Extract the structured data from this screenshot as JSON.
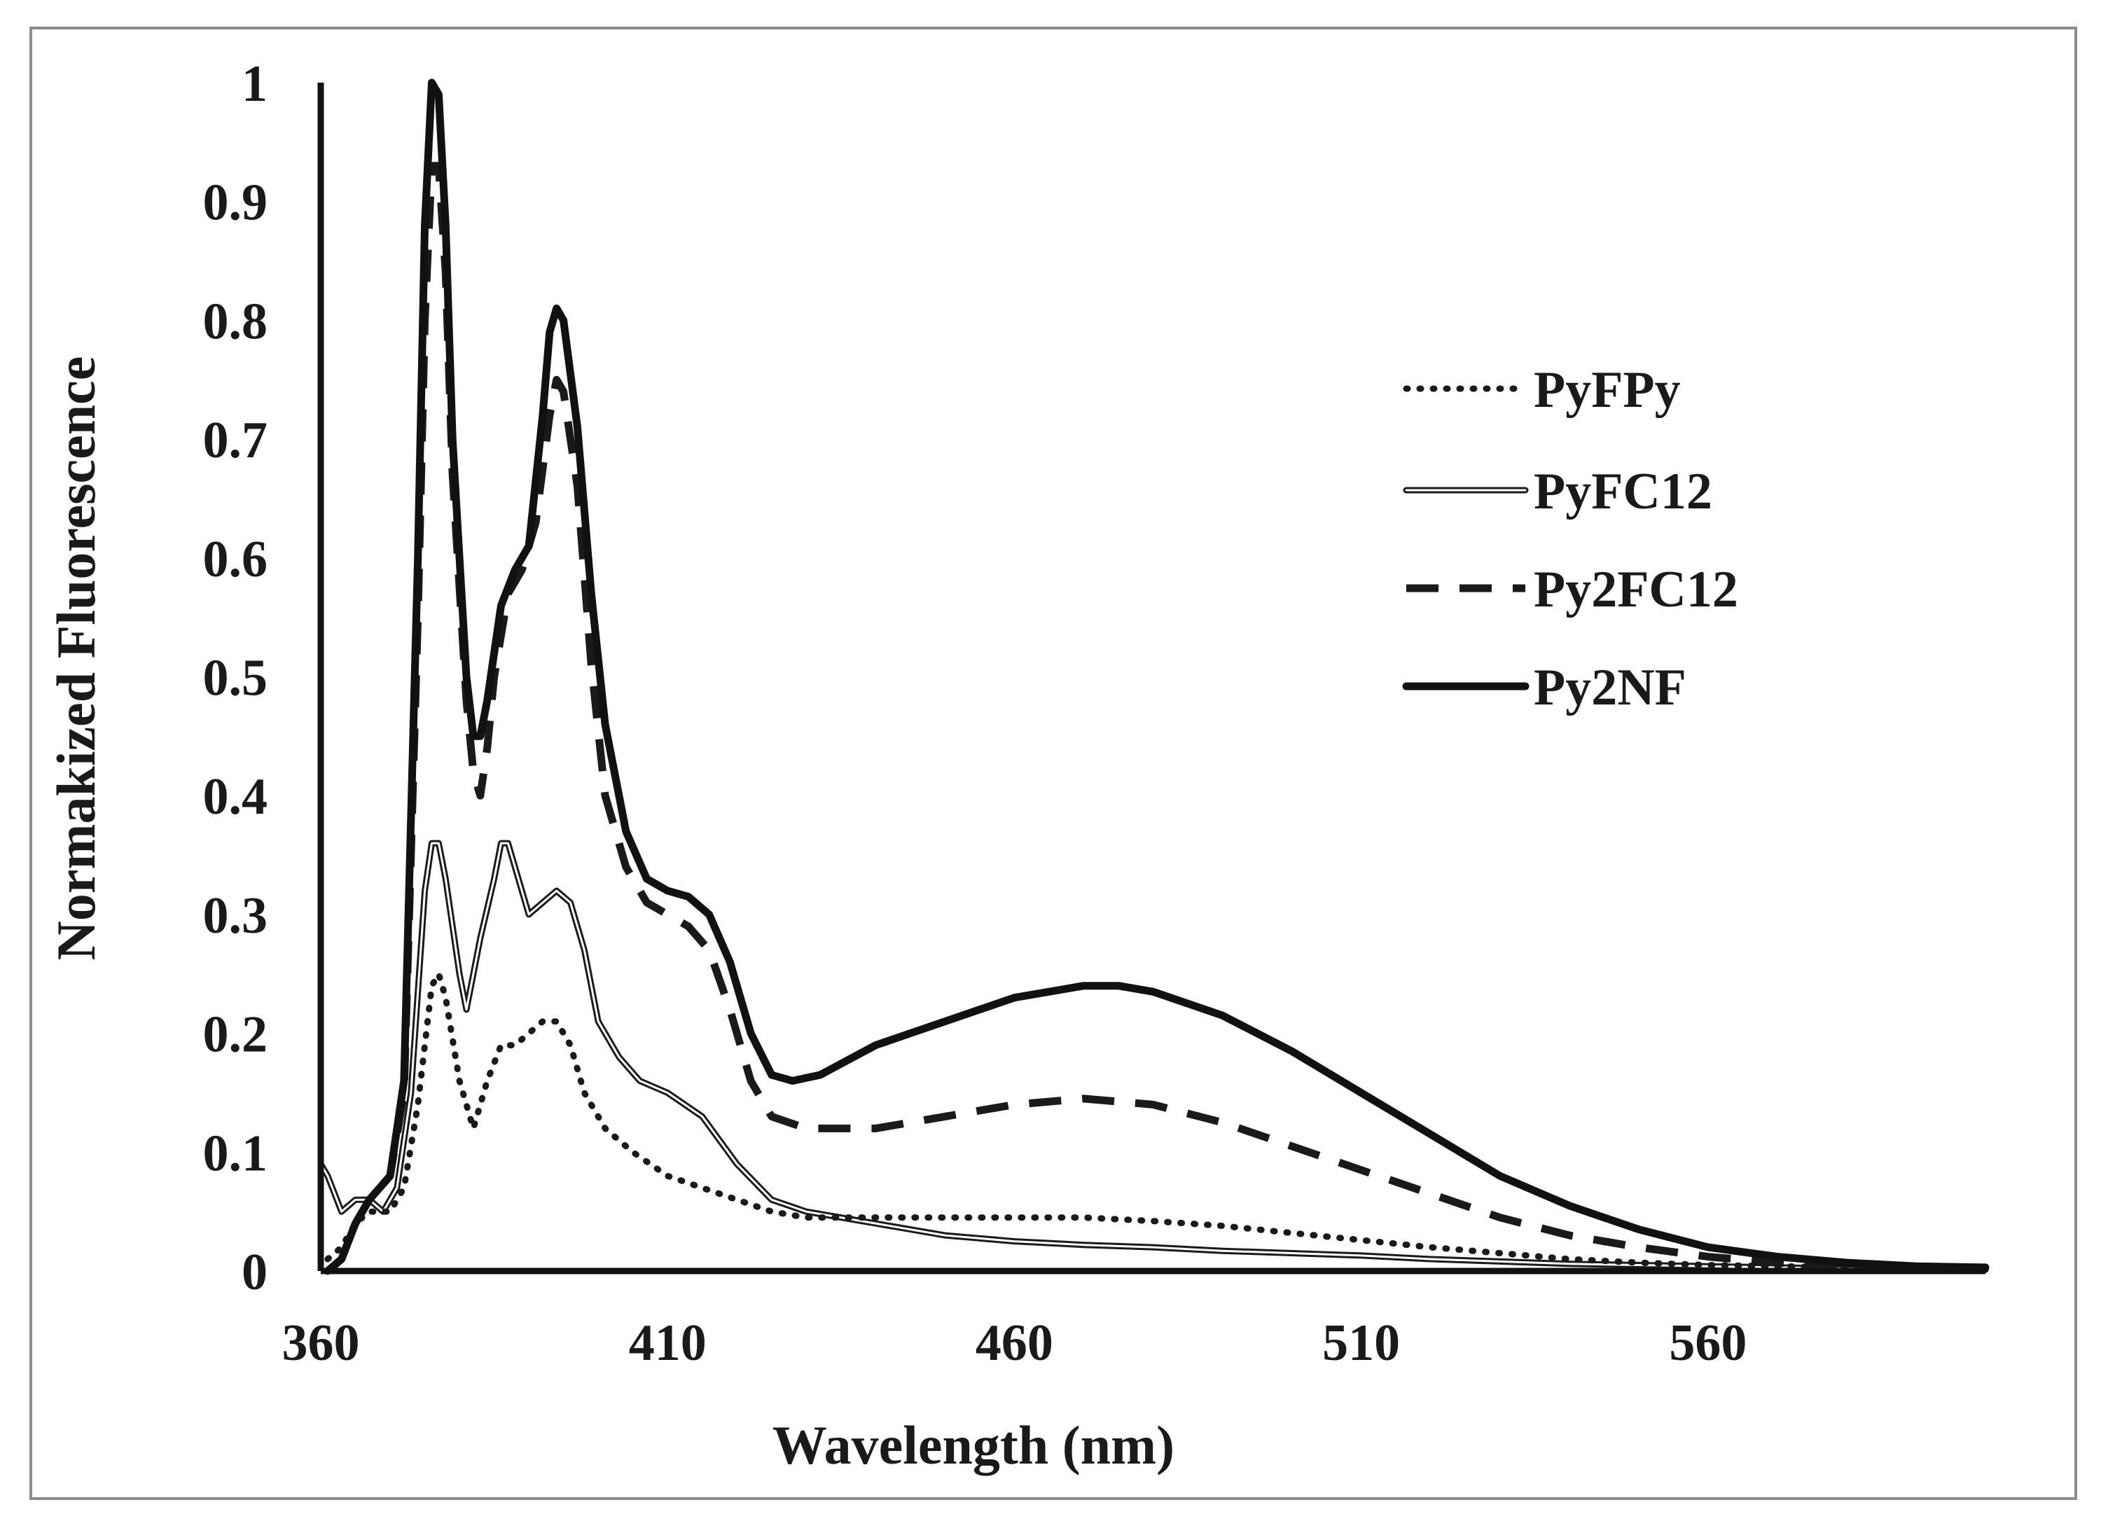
{
  "chart_data": {
    "type": "line",
    "title": "",
    "xlabel": "Wavelength (nm)",
    "ylabel": "Normakized Fluorescence",
    "xlim": [
      360,
      600
    ],
    "ylim": [
      0,
      1
    ],
    "x_ticks": [
      360,
      410,
      460,
      510,
      560
    ],
    "x_tick_labels": [
      "360",
      "410",
      "460",
      "510",
      "560"
    ],
    "y_ticks": [
      0,
      0.1,
      0.2,
      0.3,
      0.4,
      0.5,
      0.6,
      0.7,
      0.8,
      0.9,
      1
    ],
    "y_tick_labels": [
      "0",
      "0.1",
      "0.2",
      "0.3",
      "0.4",
      "0.5",
      "0.6",
      "0.7",
      "0.8",
      "0.9",
      "1"
    ],
    "grid": false,
    "legend_position": "right",
    "series": [
      {
        "name": "PyFPy",
        "style": "dotted",
        "color": "#1a1a1a",
        "points": [
          [
            361,
            0.01
          ],
          [
            363,
            0.02
          ],
          [
            365,
            0.04
          ],
          [
            367,
            0.05
          ],
          [
            370,
            0.05
          ],
          [
            372,
            0.07
          ],
          [
            374,
            0.14
          ],
          [
            376,
            0.24
          ],
          [
            377,
            0.25
          ],
          [
            378,
            0.23
          ],
          [
            380,
            0.16
          ],
          [
            382,
            0.12
          ],
          [
            384,
            0.16
          ],
          [
            386,
            0.19
          ],
          [
            388,
            0.19
          ],
          [
            390,
            0.2
          ],
          [
            392,
            0.21
          ],
          [
            394,
            0.21
          ],
          [
            396,
            0.19
          ],
          [
            398,
            0.15
          ],
          [
            401,
            0.12
          ],
          [
            405,
            0.1
          ],
          [
            410,
            0.08
          ],
          [
            415,
            0.07
          ],
          [
            420,
            0.06
          ],
          [
            425,
            0.05
          ],
          [
            430,
            0.045
          ],
          [
            440,
            0.045
          ],
          [
            450,
            0.045
          ],
          [
            460,
            0.045
          ],
          [
            470,
            0.045
          ],
          [
            480,
            0.042
          ],
          [
            490,
            0.038
          ],
          [
            500,
            0.032
          ],
          [
            510,
            0.026
          ],
          [
            520,
            0.02
          ],
          [
            530,
            0.015
          ],
          [
            540,
            0.01
          ],
          [
            550,
            0.007
          ],
          [
            560,
            0.005
          ],
          [
            580,
            0.003
          ],
          [
            600,
            0.002
          ]
        ]
      },
      {
        "name": "PyFC12",
        "style": "double",
        "color": "#1a1a1a",
        "points": [
          [
            360,
            0.09
          ],
          [
            361,
            0.08
          ],
          [
            363,
            0.05
          ],
          [
            365,
            0.06
          ],
          [
            367,
            0.06
          ],
          [
            369,
            0.05
          ],
          [
            371,
            0.07
          ],
          [
            373,
            0.15
          ],
          [
            375,
            0.32
          ],
          [
            376,
            0.36
          ],
          [
            377,
            0.36
          ],
          [
            378,
            0.33
          ],
          [
            380,
            0.25
          ],
          [
            381,
            0.22
          ],
          [
            383,
            0.28
          ],
          [
            385,
            0.33
          ],
          [
            386,
            0.36
          ],
          [
            387,
            0.36
          ],
          [
            389,
            0.32
          ],
          [
            390,
            0.3
          ],
          [
            392,
            0.31
          ],
          [
            394,
            0.32
          ],
          [
            396,
            0.31
          ],
          [
            398,
            0.27
          ],
          [
            400,
            0.21
          ],
          [
            403,
            0.18
          ],
          [
            406,
            0.16
          ],
          [
            410,
            0.15
          ],
          [
            415,
            0.13
          ],
          [
            420,
            0.09
          ],
          [
            425,
            0.06
          ],
          [
            430,
            0.05
          ],
          [
            440,
            0.04
          ],
          [
            450,
            0.03
          ],
          [
            460,
            0.025
          ],
          [
            470,
            0.022
          ],
          [
            480,
            0.02
          ],
          [
            490,
            0.017
          ],
          [
            500,
            0.015
          ],
          [
            510,
            0.013
          ],
          [
            520,
            0.01
          ],
          [
            530,
            0.008
          ],
          [
            540,
            0.006
          ],
          [
            550,
            0.005
          ],
          [
            560,
            0.004
          ],
          [
            580,
            0.002
          ],
          [
            600,
            0.001
          ]
        ]
      },
      {
        "name": "Py2FC12",
        "style": "dashed",
        "color": "#1a1a1a",
        "points": [
          [
            361,
            0.0
          ],
          [
            363,
            0.01
          ],
          [
            365,
            0.04
          ],
          [
            367,
            0.06
          ],
          [
            370,
            0.08
          ],
          [
            372,
            0.15
          ],
          [
            374,
            0.55
          ],
          [
            375,
            0.8
          ],
          [
            376,
            0.93
          ],
          [
            377,
            0.93
          ],
          [
            378,
            0.84
          ],
          [
            379,
            0.67
          ],
          [
            381,
            0.48
          ],
          [
            382,
            0.42
          ],
          [
            383,
            0.4
          ],
          [
            384,
            0.44
          ],
          [
            385,
            0.5
          ],
          [
            387,
            0.57
          ],
          [
            389,
            0.59
          ],
          [
            391,
            0.63
          ],
          [
            393,
            0.72
          ],
          [
            394,
            0.75
          ],
          [
            395,
            0.74
          ],
          [
            397,
            0.66
          ],
          [
            399,
            0.51
          ],
          [
            401,
            0.4
          ],
          [
            404,
            0.34
          ],
          [
            407,
            0.31
          ],
          [
            410,
            0.3
          ],
          [
            413,
            0.29
          ],
          [
            416,
            0.27
          ],
          [
            419,
            0.22
          ],
          [
            422,
            0.16
          ],
          [
            425,
            0.13
          ],
          [
            430,
            0.12
          ],
          [
            440,
            0.12
          ],
          [
            450,
            0.13
          ],
          [
            460,
            0.14
          ],
          [
            470,
            0.145
          ],
          [
            480,
            0.14
          ],
          [
            490,
            0.125
          ],
          [
            500,
            0.105
          ],
          [
            510,
            0.085
          ],
          [
            520,
            0.065
          ],
          [
            530,
            0.045
          ],
          [
            540,
            0.03
          ],
          [
            550,
            0.02
          ],
          [
            560,
            0.012
          ],
          [
            570,
            0.007
          ],
          [
            580,
            0.004
          ],
          [
            600,
            0.002
          ]
        ]
      },
      {
        "name": "Py2NF",
        "style": "solid",
        "color": "#1a1a1a",
        "points": [
          [
            361,
            0.0
          ],
          [
            363,
            0.01
          ],
          [
            365,
            0.04
          ],
          [
            367,
            0.06
          ],
          [
            370,
            0.08
          ],
          [
            372,
            0.16
          ],
          [
            374,
            0.6
          ],
          [
            375,
            0.88
          ],
          [
            376,
            1.0
          ],
          [
            377,
            0.99
          ],
          [
            378,
            0.88
          ],
          [
            379,
            0.7
          ],
          [
            381,
            0.5
          ],
          [
            382,
            0.45
          ],
          [
            383,
            0.45
          ],
          [
            384,
            0.48
          ],
          [
            386,
            0.56
          ],
          [
            388,
            0.59
          ],
          [
            390,
            0.61
          ],
          [
            392,
            0.72
          ],
          [
            393,
            0.79
          ],
          [
            394,
            0.81
          ],
          [
            395,
            0.8
          ],
          [
            397,
            0.71
          ],
          [
            399,
            0.57
          ],
          [
            401,
            0.46
          ],
          [
            404,
            0.37
          ],
          [
            407,
            0.33
          ],
          [
            410,
            0.32
          ],
          [
            413,
            0.315
          ],
          [
            416,
            0.3
          ],
          [
            419,
            0.26
          ],
          [
            422,
            0.2
          ],
          [
            425,
            0.165
          ],
          [
            428,
            0.16
          ],
          [
            432,
            0.165
          ],
          [
            440,
            0.19
          ],
          [
            450,
            0.21
          ],
          [
            460,
            0.23
          ],
          [
            470,
            0.24
          ],
          [
            475,
            0.24
          ],
          [
            480,
            0.235
          ],
          [
            490,
            0.215
          ],
          [
            500,
            0.185
          ],
          [
            510,
            0.15
          ],
          [
            520,
            0.115
          ],
          [
            530,
            0.08
          ],
          [
            540,
            0.055
          ],
          [
            550,
            0.035
          ],
          [
            560,
            0.02
          ],
          [
            570,
            0.012
          ],
          [
            580,
            0.007
          ],
          [
            590,
            0.004
          ],
          [
            600,
            0.003
          ]
        ]
      }
    ]
  }
}
